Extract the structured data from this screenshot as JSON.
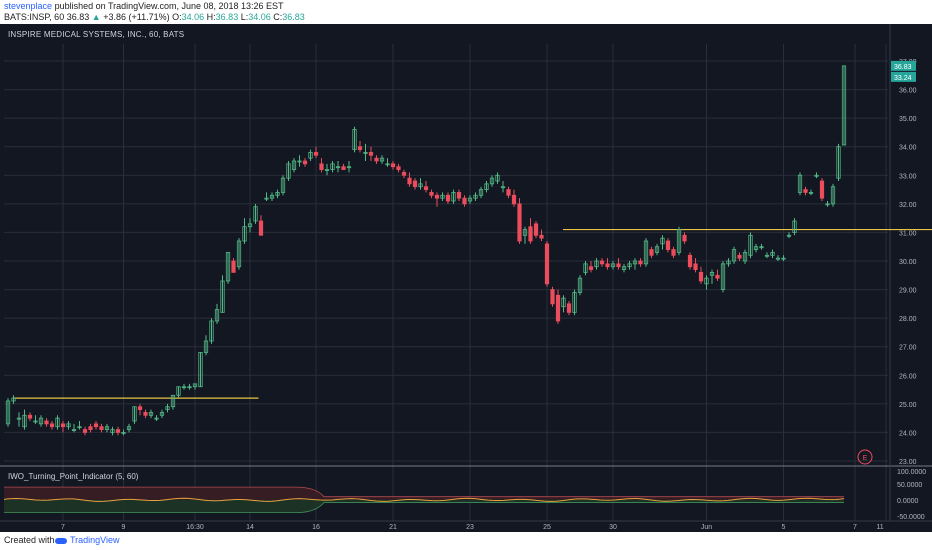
{
  "header": {
    "author": "stevenplace",
    "published_text": "published on TradingView.com, June 08, 2018 13:26 EST",
    "symbol": "BATS:INSP, 60",
    "last": "36.83",
    "change_arrow": "▲",
    "change": "+3.86 (+11.71%)",
    "open_label": "O:",
    "open": "34.06",
    "high_label": "H:",
    "high": "36.83",
    "low_label": "L:",
    "low": "34.06",
    "close_label": "C:",
    "close": "36.83"
  },
  "chart_title": "INSPIRE MEDICAL SYSTEMS, INC., 60, BATS",
  "indicator_title": "IWO_Turning_Point_Indicator (5, 60)",
  "footer": {
    "created_with": "Created with",
    "brand": "TradingView"
  },
  "colors": {
    "background": "#131722",
    "grid": "#2a2e39",
    "up": "#53b987",
    "down": "#eb4d5c",
    "level_line": "#e8c341",
    "axis_text": "#b2b5be",
    "price_label": "#26a69a",
    "earnings": "#eb4d5c"
  },
  "chart_data": {
    "type": "candlestick",
    "title": "INSPIRE MEDICAL SYSTEMS, INC., 60, BATS",
    "y_ticks": [
      "37.00",
      "36.00",
      "35.00",
      "34.00",
      "33.00",
      "32.00",
      "31.00",
      "30.00",
      "29.00",
      "28.00",
      "27.00",
      "26.00",
      "25.00",
      "24.00",
      "23.00"
    ],
    "x_ticks": [
      "7",
      "9",
      "16:30",
      "14",
      "16",
      "21",
      "23",
      "25",
      "30",
      "Jun",
      "5",
      "7",
      "11"
    ],
    "last_price_labels": [
      "36.83",
      "33.24"
    ],
    "horizontal_levels": [
      {
        "value": 25.2,
        "from": 2,
        "to": 45
      },
      {
        "value": 31.1,
        "from": 102,
        "to": 168
      }
    ],
    "earnings_marker": "E",
    "candles": [
      [
        24.3,
        25.2,
        24.2,
        25.1
      ],
      [
        25.1,
        25.3,
        25.0,
        25.2
      ],
      [
        24.5,
        24.7,
        24.2,
        24.5
      ],
      [
        24.2,
        24.8,
        24.1,
        24.6
      ],
      [
        24.6,
        24.7,
        24.4,
        24.5
      ],
      [
        24.4,
        24.6,
        24.3,
        24.4
      ],
      [
        24.3,
        24.6,
        24.2,
        24.5
      ],
      [
        24.4,
        24.5,
        24.2,
        24.3
      ],
      [
        24.3,
        24.4,
        24.1,
        24.2
      ],
      [
        24.2,
        24.6,
        24.1,
        24.5
      ],
      [
        24.3,
        24.4,
        24.0,
        24.2
      ],
      [
        24.2,
        24.4,
        24.1,
        24.3
      ],
      [
        24.1,
        24.3,
        24.0,
        24.1
      ],
      [
        24.2,
        24.4,
        24.1,
        24.2
      ],
      [
        24.1,
        24.2,
        23.9,
        24.0
      ],
      [
        24.2,
        24.3,
        24.0,
        24.1
      ],
      [
        24.3,
        24.4,
        24.1,
        24.2
      ],
      [
        24.2,
        24.3,
        24.0,
        24.1
      ],
      [
        24.1,
        24.3,
        24.0,
        24.2
      ],
      [
        24.0,
        24.2,
        23.9,
        24.1
      ],
      [
        24.1,
        24.2,
        23.9,
        24.0
      ],
      [
        24.0,
        24.1,
        23.9,
        24.0
      ],
      [
        24.1,
        24.3,
        24.0,
        24.2
      ],
      [
        24.4,
        24.9,
        24.3,
        24.9
      ],
      [
        24.9,
        25.0,
        24.6,
        24.8
      ],
      [
        24.7,
        24.8,
        24.5,
        24.6
      ],
      [
        24.6,
        24.8,
        24.5,
        24.7
      ],
      [
        24.5,
        24.6,
        24.4,
        24.5
      ],
      [
        24.6,
        24.8,
        24.5,
        24.7
      ],
      [
        24.8,
        25.0,
        24.7,
        24.9
      ],
      [
        24.9,
        25.3,
        24.8,
        25.3
      ],
      [
        25.3,
        25.6,
        25.2,
        25.6
      ],
      [
        25.6,
        25.7,
        25.5,
        25.6
      ],
      [
        25.6,
        25.7,
        25.5,
        25.6
      ],
      [
        25.6,
        25.7,
        25.5,
        25.7
      ],
      [
        25.6,
        26.8,
        25.6,
        26.8
      ],
      [
        26.8,
        27.4,
        26.7,
        27.2
      ],
      [
        27.2,
        28.0,
        27.1,
        27.9
      ],
      [
        27.9,
        28.5,
        27.8,
        28.3
      ],
      [
        28.2,
        29.5,
        28.2,
        29.3
      ],
      [
        29.3,
        30.3,
        29.2,
        30.3
      ],
      [
        30.0,
        30.1,
        29.6,
        29.6
      ],
      [
        29.8,
        30.8,
        29.7,
        30.7
      ],
      [
        30.7,
        31.5,
        30.6,
        31.2
      ],
      [
        31.2,
        31.5,
        31.0,
        31.3
      ],
      [
        31.4,
        32.0,
        31.3,
        31.9
      ],
      [
        31.4,
        31.6,
        30.9,
        30.9
      ],
      [
        32.2,
        32.4,
        32.1,
        32.2
      ],
      [
        32.2,
        32.4,
        32.1,
        32.3
      ],
      [
        32.3,
        32.5,
        32.2,
        32.4
      ],
      [
        32.4,
        33.0,
        32.3,
        32.9
      ],
      [
        32.9,
        33.5,
        32.8,
        33.4
      ],
      [
        33.2,
        33.6,
        33.1,
        33.5
      ],
      [
        33.5,
        33.7,
        33.3,
        33.5
      ],
      [
        33.5,
        33.6,
        33.3,
        33.4
      ],
      [
        33.6,
        33.9,
        33.5,
        33.8
      ],
      [
        33.8,
        34.0,
        33.6,
        33.7
      ],
      [
        33.4,
        33.6,
        33.1,
        33.2
      ],
      [
        33.2,
        33.4,
        33.0,
        33.2
      ],
      [
        33.2,
        33.5,
        33.1,
        33.4
      ],
      [
        33.3,
        33.5,
        33.1,
        33.3
      ],
      [
        33.3,
        33.4,
        33.2,
        33.2
      ],
      [
        33.3,
        33.5,
        33.1,
        33.3
      ],
      [
        33.9,
        34.7,
        33.8,
        34.6
      ],
      [
        34.0,
        34.2,
        33.8,
        33.9
      ],
      [
        33.8,
        34.1,
        33.5,
        33.8
      ],
      [
        33.8,
        34.0,
        33.5,
        33.7
      ],
      [
        33.6,
        33.7,
        33.4,
        33.5
      ],
      [
        33.5,
        33.7,
        33.4,
        33.6
      ],
      [
        33.4,
        33.6,
        33.3,
        33.4
      ],
      [
        33.4,
        33.5,
        33.2,
        33.3
      ],
      [
        33.3,
        33.4,
        33.1,
        33.2
      ],
      [
        33.1,
        33.2,
        32.9,
        33.0
      ],
      [
        32.9,
        33.1,
        32.6,
        32.7
      ],
      [
        32.8,
        32.9,
        32.5,
        32.6
      ],
      [
        32.6,
        32.9,
        32.5,
        32.7
      ],
      [
        32.6,
        32.8,
        32.4,
        32.5
      ],
      [
        32.4,
        32.5,
        32.2,
        32.3
      ],
      [
        32.3,
        32.4,
        31.9,
        32.2
      ],
      [
        32.2,
        32.4,
        32.1,
        32.3
      ],
      [
        32.3,
        32.4,
        32.0,
        32.1
      ],
      [
        32.1,
        32.5,
        32.0,
        32.4
      ],
      [
        32.4,
        32.5,
        32.1,
        32.2
      ],
      [
        32.2,
        32.3,
        31.9,
        32.0
      ],
      [
        32.1,
        32.3,
        32.0,
        32.2
      ],
      [
        32.2,
        32.4,
        32.1,
        32.3
      ],
      [
        32.3,
        32.6,
        32.2,
        32.5
      ],
      [
        32.5,
        32.8,
        32.4,
        32.7
      ],
      [
        32.7,
        33.0,
        32.6,
        32.9
      ],
      [
        32.8,
        33.1,
        32.7,
        33.0
      ],
      [
        32.6,
        32.8,
        32.4,
        32.6
      ],
      [
        32.5,
        32.6,
        32.2,
        32.3
      ],
      [
        32.3,
        32.5,
        31.9,
        32.0
      ],
      [
        32.0,
        32.2,
        30.6,
        30.7
      ],
      [
        30.9,
        31.2,
        30.6,
        31.1
      ],
      [
        31.2,
        31.5,
        30.6,
        30.7
      ],
      [
        31.3,
        31.4,
        30.8,
        30.9
      ],
      [
        30.9,
        31.1,
        30.7,
        30.8
      ],
      [
        30.6,
        30.7,
        29.1,
        29.2
      ],
      [
        29.0,
        29.1,
        28.4,
        28.5
      ],
      [
        28.8,
        29.0,
        27.8,
        27.9
      ],
      [
        28.4,
        28.8,
        28.2,
        28.7
      ],
      [
        28.5,
        28.6,
        28.1,
        28.2
      ],
      [
        28.2,
        29.0,
        28.1,
        28.9
      ],
      [
        28.9,
        29.5,
        28.8,
        29.4
      ],
      [
        29.6,
        30.0,
        29.5,
        29.9
      ],
      [
        29.8,
        30.0,
        29.6,
        29.7
      ],
      [
        29.8,
        30.1,
        29.7,
        30.0
      ],
      [
        30.0,
        30.1,
        29.8,
        29.9
      ],
      [
        29.9,
        30.1,
        29.7,
        29.8
      ],
      [
        29.8,
        30.0,
        29.7,
        29.9
      ],
      [
        29.9,
        30.1,
        29.7,
        29.8
      ],
      [
        29.7,
        29.9,
        29.6,
        29.8
      ],
      [
        29.8,
        30.0,
        29.7,
        29.9
      ],
      [
        29.9,
        30.1,
        29.7,
        30.0
      ],
      [
        30.0,
        30.1,
        29.8,
        29.9
      ],
      [
        29.9,
        30.8,
        29.8,
        30.7
      ],
      [
        30.4,
        30.5,
        30.1,
        30.2
      ],
      [
        30.3,
        30.6,
        30.2,
        30.5
      ],
      [
        30.6,
        30.9,
        30.4,
        30.8
      ],
      [
        30.7,
        30.8,
        30.3,
        30.4
      ],
      [
        30.4,
        30.5,
        30.1,
        30.2
      ],
      [
        30.3,
        31.2,
        30.2,
        31.1
      ],
      [
        30.9,
        31.0,
        30.6,
        30.7
      ],
      [
        30.2,
        30.3,
        29.7,
        29.8
      ],
      [
        29.9,
        30.1,
        29.6,
        29.7
      ],
      [
        29.6,
        29.8,
        29.2,
        29.3
      ],
      [
        29.2,
        29.5,
        29.0,
        29.4
      ],
      [
        29.5,
        29.7,
        29.2,
        29.6
      ],
      [
        29.5,
        29.7,
        29.3,
        29.4
      ],
      [
        29.0,
        30.0,
        28.9,
        29.9
      ],
      [
        29.9,
        30.1,
        29.8,
        30.0
      ],
      [
        30.0,
        30.5,
        29.9,
        30.4
      ],
      [
        30.2,
        30.3,
        30.0,
        30.1
      ],
      [
        30.0,
        30.4,
        29.9,
        30.3
      ],
      [
        30.2,
        31.0,
        30.1,
        30.9
      ],
      [
        30.4,
        30.6,
        30.3,
        30.5
      ],
      [
        30.5,
        30.6,
        30.4,
        30.5
      ],
      [
        30.2,
        30.3,
        30.1,
        30.2
      ],
      [
        30.2,
        30.4,
        30.1,
        30.3
      ],
      [
        30.1,
        30.2,
        30.0,
        30.1
      ],
      [
        30.1,
        30.2,
        30.0,
        30.1
      ],
      [
        30.9,
        31.0,
        30.8,
        30.9
      ],
      [
        31.0,
        31.5,
        30.9,
        31.4
      ],
      [
        32.4,
        33.1,
        32.3,
        33.0
      ],
      [
        32.5,
        32.6,
        32.3,
        32.4
      ],
      [
        32.4,
        32.5,
        32.3,
        32.4
      ],
      [
        33.0,
        33.1,
        32.9,
        33.0
      ],
      [
        32.8,
        32.9,
        32.1,
        32.2
      ],
      [
        32.0,
        32.1,
        31.9,
        32.0
      ],
      [
        32.0,
        32.7,
        31.9,
        32.6
      ],
      [
        32.9,
        34.1,
        32.8,
        34.0
      ],
      [
        34.06,
        36.83,
        34.06,
        36.83
      ]
    ],
    "indicator": {
      "name": "IWO_Turning_Point_Indicator (5, 60)",
      "y_ticks": [
        "100.0000",
        "50.0000",
        "0.0000",
        "-50.0000"
      ]
    }
  }
}
